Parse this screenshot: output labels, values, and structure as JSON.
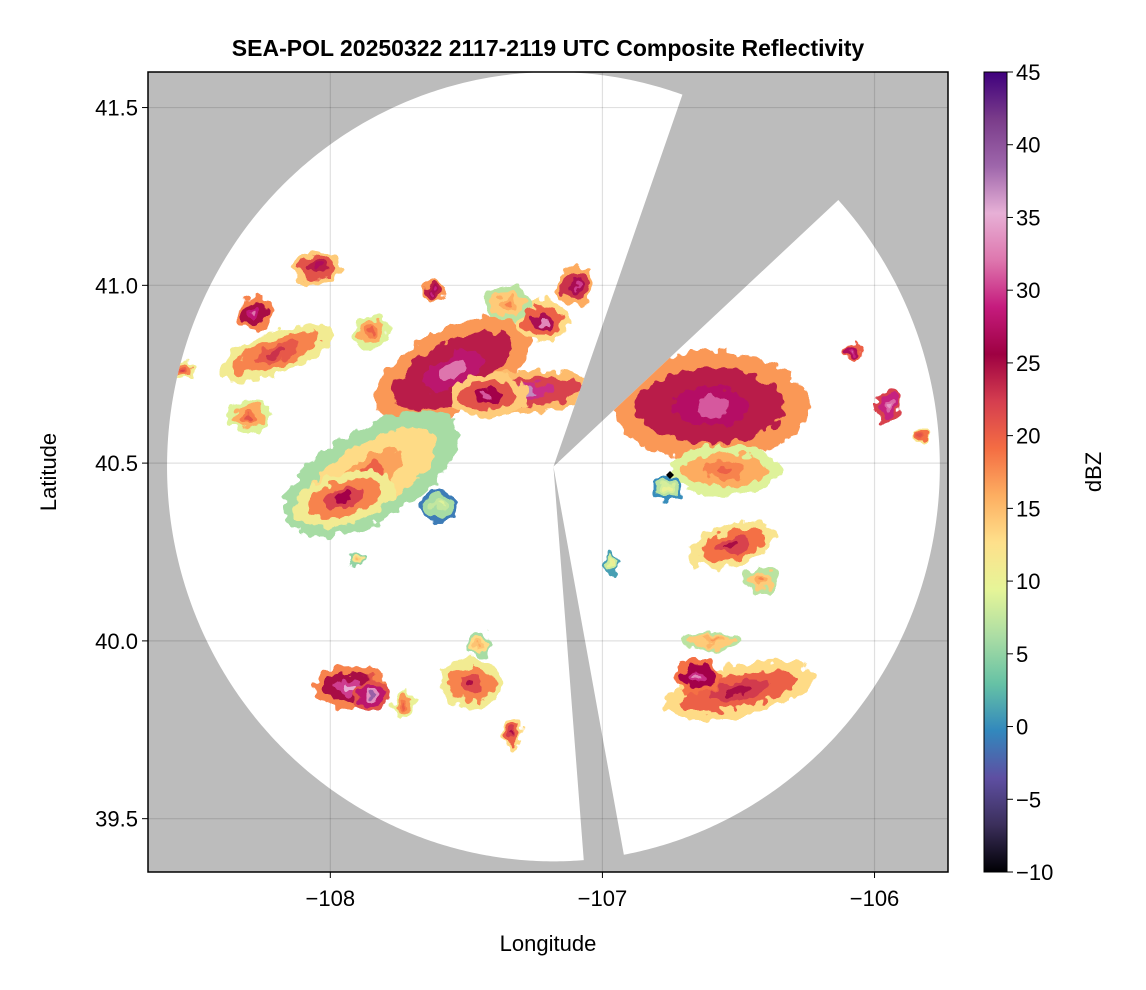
{
  "chart_data": {
    "type": "heatmap",
    "title": "SEA-POL 20250322 2117-2119 UTC Composite Reflectivity",
    "xlabel": "Longitude",
    "ylabel": "Latitude",
    "xlim": [
      -108.67,
      -105.73
    ],
    "ylim": [
      39.35,
      41.6
    ],
    "xticks": [
      -108,
      -107,
      -106
    ],
    "xtick_labels": [
      "−108",
      "−107",
      "−106"
    ],
    "yticks": [
      39.5,
      40.0,
      40.5,
      41.0,
      41.5
    ],
    "ytick_labels": [
      "39.5",
      "40.0",
      "40.5",
      "41.0",
      "41.5"
    ],
    "grid": true,
    "radar": {
      "center_lon": -107.18,
      "center_lat": 40.49,
      "max_range_lon": 1.42,
      "max_range_lat": 1.11,
      "blocked_sectors_deg": [
        [
          20,
          47
        ],
        [
          170,
          175
        ]
      ]
    },
    "colorbar": {
      "label": "dBZ",
      "min": -10,
      "max": 45,
      "ticks": [
        -10,
        -5,
        0,
        5,
        10,
        15,
        20,
        25,
        30,
        35,
        40,
        45
      ],
      "tick_labels": [
        "−10",
        "−5",
        "0",
        "5",
        "10",
        "15",
        "20",
        "25",
        "30",
        "35",
        "40",
        "45"
      ],
      "colors": [
        "#000004",
        "#3b2f5b",
        "#5e4fa2",
        "#3288bd",
        "#66c2a5",
        "#abdda4",
        "#e6f598",
        "#fee08b",
        "#fdae61",
        "#f46d43",
        "#d53e4f",
        "#9e0142",
        "#c51b7d",
        "#de77ae",
        "#e7b0d6",
        "#9e66ab",
        "#7a3c8a",
        "#3f007d"
      ]
    },
    "cells": [
      {
        "lon": -107.55,
        "lat": 40.76,
        "rlon": 0.28,
        "rlat": 0.1,
        "rot": -28,
        "dbz": 24,
        "core_dbz": 32
      },
      {
        "lon": -107.28,
        "lat": 40.7,
        "rlon": 0.24,
        "rlat": 0.05,
        "rot": -4,
        "dbz": 22,
        "core_dbz": 37
      },
      {
        "lon": -107.42,
        "lat": 40.69,
        "rlon": 0.13,
        "rlat": 0.05,
        "rot": 0,
        "dbz": 21,
        "core_dbz": 31
      },
      {
        "lon": -107.22,
        "lat": 40.9,
        "rlon": 0.09,
        "rlat": 0.05,
        "rot": 0,
        "dbz": 20,
        "core_dbz": 33
      },
      {
        "lon": -107.1,
        "lat": 41.0,
        "rlon": 0.06,
        "rlat": 0.05,
        "rot": 0,
        "dbz": 23,
        "core_dbz": 30
      },
      {
        "lon": -107.35,
        "lat": 40.95,
        "rlon": 0.08,
        "rlat": 0.04,
        "rot": 0,
        "dbz": 14,
        "core_dbz": 18
      },
      {
        "lon": -107.62,
        "lat": 40.98,
        "rlon": 0.04,
        "rlat": 0.03,
        "rot": 0,
        "dbz": 24,
        "core_dbz": 29
      },
      {
        "lon": -107.85,
        "lat": 40.87,
        "rlon": 0.06,
        "rlat": 0.04,
        "rot": 0,
        "dbz": 16,
        "core_dbz": 20
      },
      {
        "lon": -108.28,
        "lat": 40.92,
        "rlon": 0.06,
        "rlat": 0.04,
        "rot": 0,
        "dbz": 25,
        "core_dbz": 32
      },
      {
        "lon": -108.2,
        "lat": 40.81,
        "rlon": 0.2,
        "rlat": 0.05,
        "rot": -20,
        "dbz": 18,
        "core_dbz": 23
      },
      {
        "lon": -108.05,
        "lat": 41.05,
        "rlon": 0.08,
        "rlat": 0.04,
        "rot": 0,
        "dbz": 21,
        "core_dbz": 27
      },
      {
        "lon": -108.55,
        "lat": 40.76,
        "rlon": 0.04,
        "rlat": 0.02,
        "rot": 0,
        "dbz": 18,
        "core_dbz": 22
      },
      {
        "lon": -108.3,
        "lat": 40.63,
        "rlon": 0.07,
        "rlat": 0.04,
        "rot": 0,
        "dbz": 16,
        "core_dbz": 21
      },
      {
        "lon": -107.85,
        "lat": 40.47,
        "rlon": 0.32,
        "rlat": 0.11,
        "rot": -30,
        "dbz": 13,
        "core_dbz": 20
      },
      {
        "lon": -107.95,
        "lat": 40.4,
        "rlon": 0.17,
        "rlat": 0.06,
        "rot": -15,
        "dbz": 18,
        "core_dbz": 26
      },
      {
        "lon": -107.6,
        "lat": 40.38,
        "rlon": 0.06,
        "rlat": 0.04,
        "rot": 0,
        "dbz": 6,
        "core_dbz": 9
      },
      {
        "lon": -106.6,
        "lat": 40.66,
        "rlon": 0.32,
        "rlat": 0.13,
        "rot": 0,
        "dbz": 24,
        "core_dbz": 31
      },
      {
        "lon": -106.55,
        "lat": 40.48,
        "rlon": 0.18,
        "rlat": 0.06,
        "rot": 0,
        "dbz": 16,
        "core_dbz": 20
      },
      {
        "lon": -106.52,
        "lat": 40.27,
        "rlon": 0.15,
        "rlat": 0.05,
        "rot": -15,
        "dbz": 19,
        "core_dbz": 25
      },
      {
        "lon": -106.42,
        "lat": 40.17,
        "rlon": 0.06,
        "rlat": 0.03,
        "rot": 0,
        "dbz": 14,
        "core_dbz": 18
      },
      {
        "lon": -106.5,
        "lat": 39.86,
        "rlon": 0.25,
        "rlat": 0.06,
        "rot": -12,
        "dbz": 20,
        "core_dbz": 25
      },
      {
        "lon": -106.65,
        "lat": 39.9,
        "rlon": 0.08,
        "rlat": 0.04,
        "rot": 0,
        "dbz": 26,
        "core_dbz": 33
      },
      {
        "lon": -106.6,
        "lat": 40.0,
        "rlon": 0.1,
        "rlat": 0.02,
        "rot": 0,
        "dbz": 14,
        "core_dbz": 17
      },
      {
        "lon": -105.95,
        "lat": 40.66,
        "rlon": 0.04,
        "rlat": 0.04,
        "rot": 0,
        "dbz": 29,
        "core_dbz": 34
      },
      {
        "lon": -106.08,
        "lat": 40.81,
        "rlon": 0.03,
        "rlat": 0.02,
        "rot": 0,
        "dbz": 27,
        "core_dbz": 31
      },
      {
        "lon": -105.83,
        "lat": 40.58,
        "rlon": 0.02,
        "rlat": 0.02,
        "rot": 0,
        "dbz": 19,
        "core_dbz": 21
      },
      {
        "lon": -107.93,
        "lat": 39.87,
        "rlon": 0.12,
        "rlat": 0.05,
        "rot": 0,
        "dbz": 25,
        "core_dbz": 35
      },
      {
        "lon": -107.85,
        "lat": 39.85,
        "rlon": 0.06,
        "rlat": 0.04,
        "rot": 0,
        "dbz": 28,
        "core_dbz": 39
      },
      {
        "lon": -107.48,
        "lat": 39.88,
        "rlon": 0.1,
        "rlat": 0.06,
        "rot": 0,
        "dbz": 18,
        "core_dbz": 25
      },
      {
        "lon": -107.33,
        "lat": 39.74,
        "rlon": 0.03,
        "rlat": 0.04,
        "rot": 0,
        "dbz": 20,
        "core_dbz": 25
      },
      {
        "lon": -107.45,
        "lat": 39.99,
        "rlon": 0.04,
        "rlat": 0.03,
        "rot": 0,
        "dbz": 13,
        "core_dbz": 16
      },
      {
        "lon": -107.73,
        "lat": 39.82,
        "rlon": 0.04,
        "rlat": 0.03,
        "rot": 0,
        "dbz": 17,
        "core_dbz": 20
      },
      {
        "lon": -107.9,
        "lat": 40.23,
        "rlon": 0.03,
        "rlat": 0.02,
        "rot": 0,
        "dbz": 12,
        "core_dbz": 15
      },
      {
        "lon": -106.97,
        "lat": 40.22,
        "rlon": 0.02,
        "rlat": 0.03,
        "rot": 0,
        "dbz": 8,
        "core_dbz": 11
      },
      {
        "lon": -106.76,
        "lat": 40.43,
        "rlon": 0.05,
        "rlat": 0.03,
        "rot": 0,
        "dbz": 7,
        "core_dbz": 10
      }
    ]
  }
}
